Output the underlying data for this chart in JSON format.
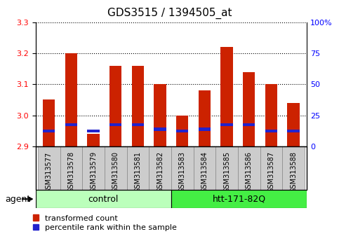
{
  "title": "GDS3515 / 1394505_at",
  "samples": [
    "GSM313577",
    "GSM313578",
    "GSM313579",
    "GSM313580",
    "GSM313581",
    "GSM313582",
    "GSM313583",
    "GSM313584",
    "GSM313585",
    "GSM313586",
    "GSM313587",
    "GSM313588"
  ],
  "red_values": [
    3.05,
    3.2,
    2.94,
    3.16,
    3.16,
    3.1,
    3.0,
    3.08,
    3.22,
    3.14,
    3.1,
    3.04
  ],
  "blue_values": [
    2.945,
    2.965,
    2.945,
    2.965,
    2.965,
    2.95,
    2.945,
    2.95,
    2.965,
    2.965,
    2.945,
    2.945
  ],
  "blue_heights": [
    0.01,
    0.01,
    0.01,
    0.01,
    0.01,
    0.01,
    0.01,
    0.01,
    0.01,
    0.01,
    0.01,
    0.01
  ],
  "y_min": 2.9,
  "y_max": 3.3,
  "y_ticks": [
    2.9,
    3.0,
    3.1,
    3.2,
    3.3
  ],
  "y2_ticks": [
    0,
    25,
    50,
    75,
    100
  ],
  "y2_labels": [
    "0",
    "25",
    "50",
    "75",
    "100%"
  ],
  "ctrl_label": "control",
  "ctrl_color": "#BBFFBB",
  "htt_label": "htt-171-82Q",
  "htt_color": "#44EE44",
  "agent_label": "agent",
  "bar_width": 0.55,
  "red_color": "#CC2200",
  "blue_color": "#2222CC",
  "tick_bg_color": "#CCCCCC",
  "plot_bg": "#FFFFFF",
  "title_fontsize": 11,
  "ytick_fontsize": 8,
  "xtick_fontsize": 7,
  "legend_fontsize": 8
}
